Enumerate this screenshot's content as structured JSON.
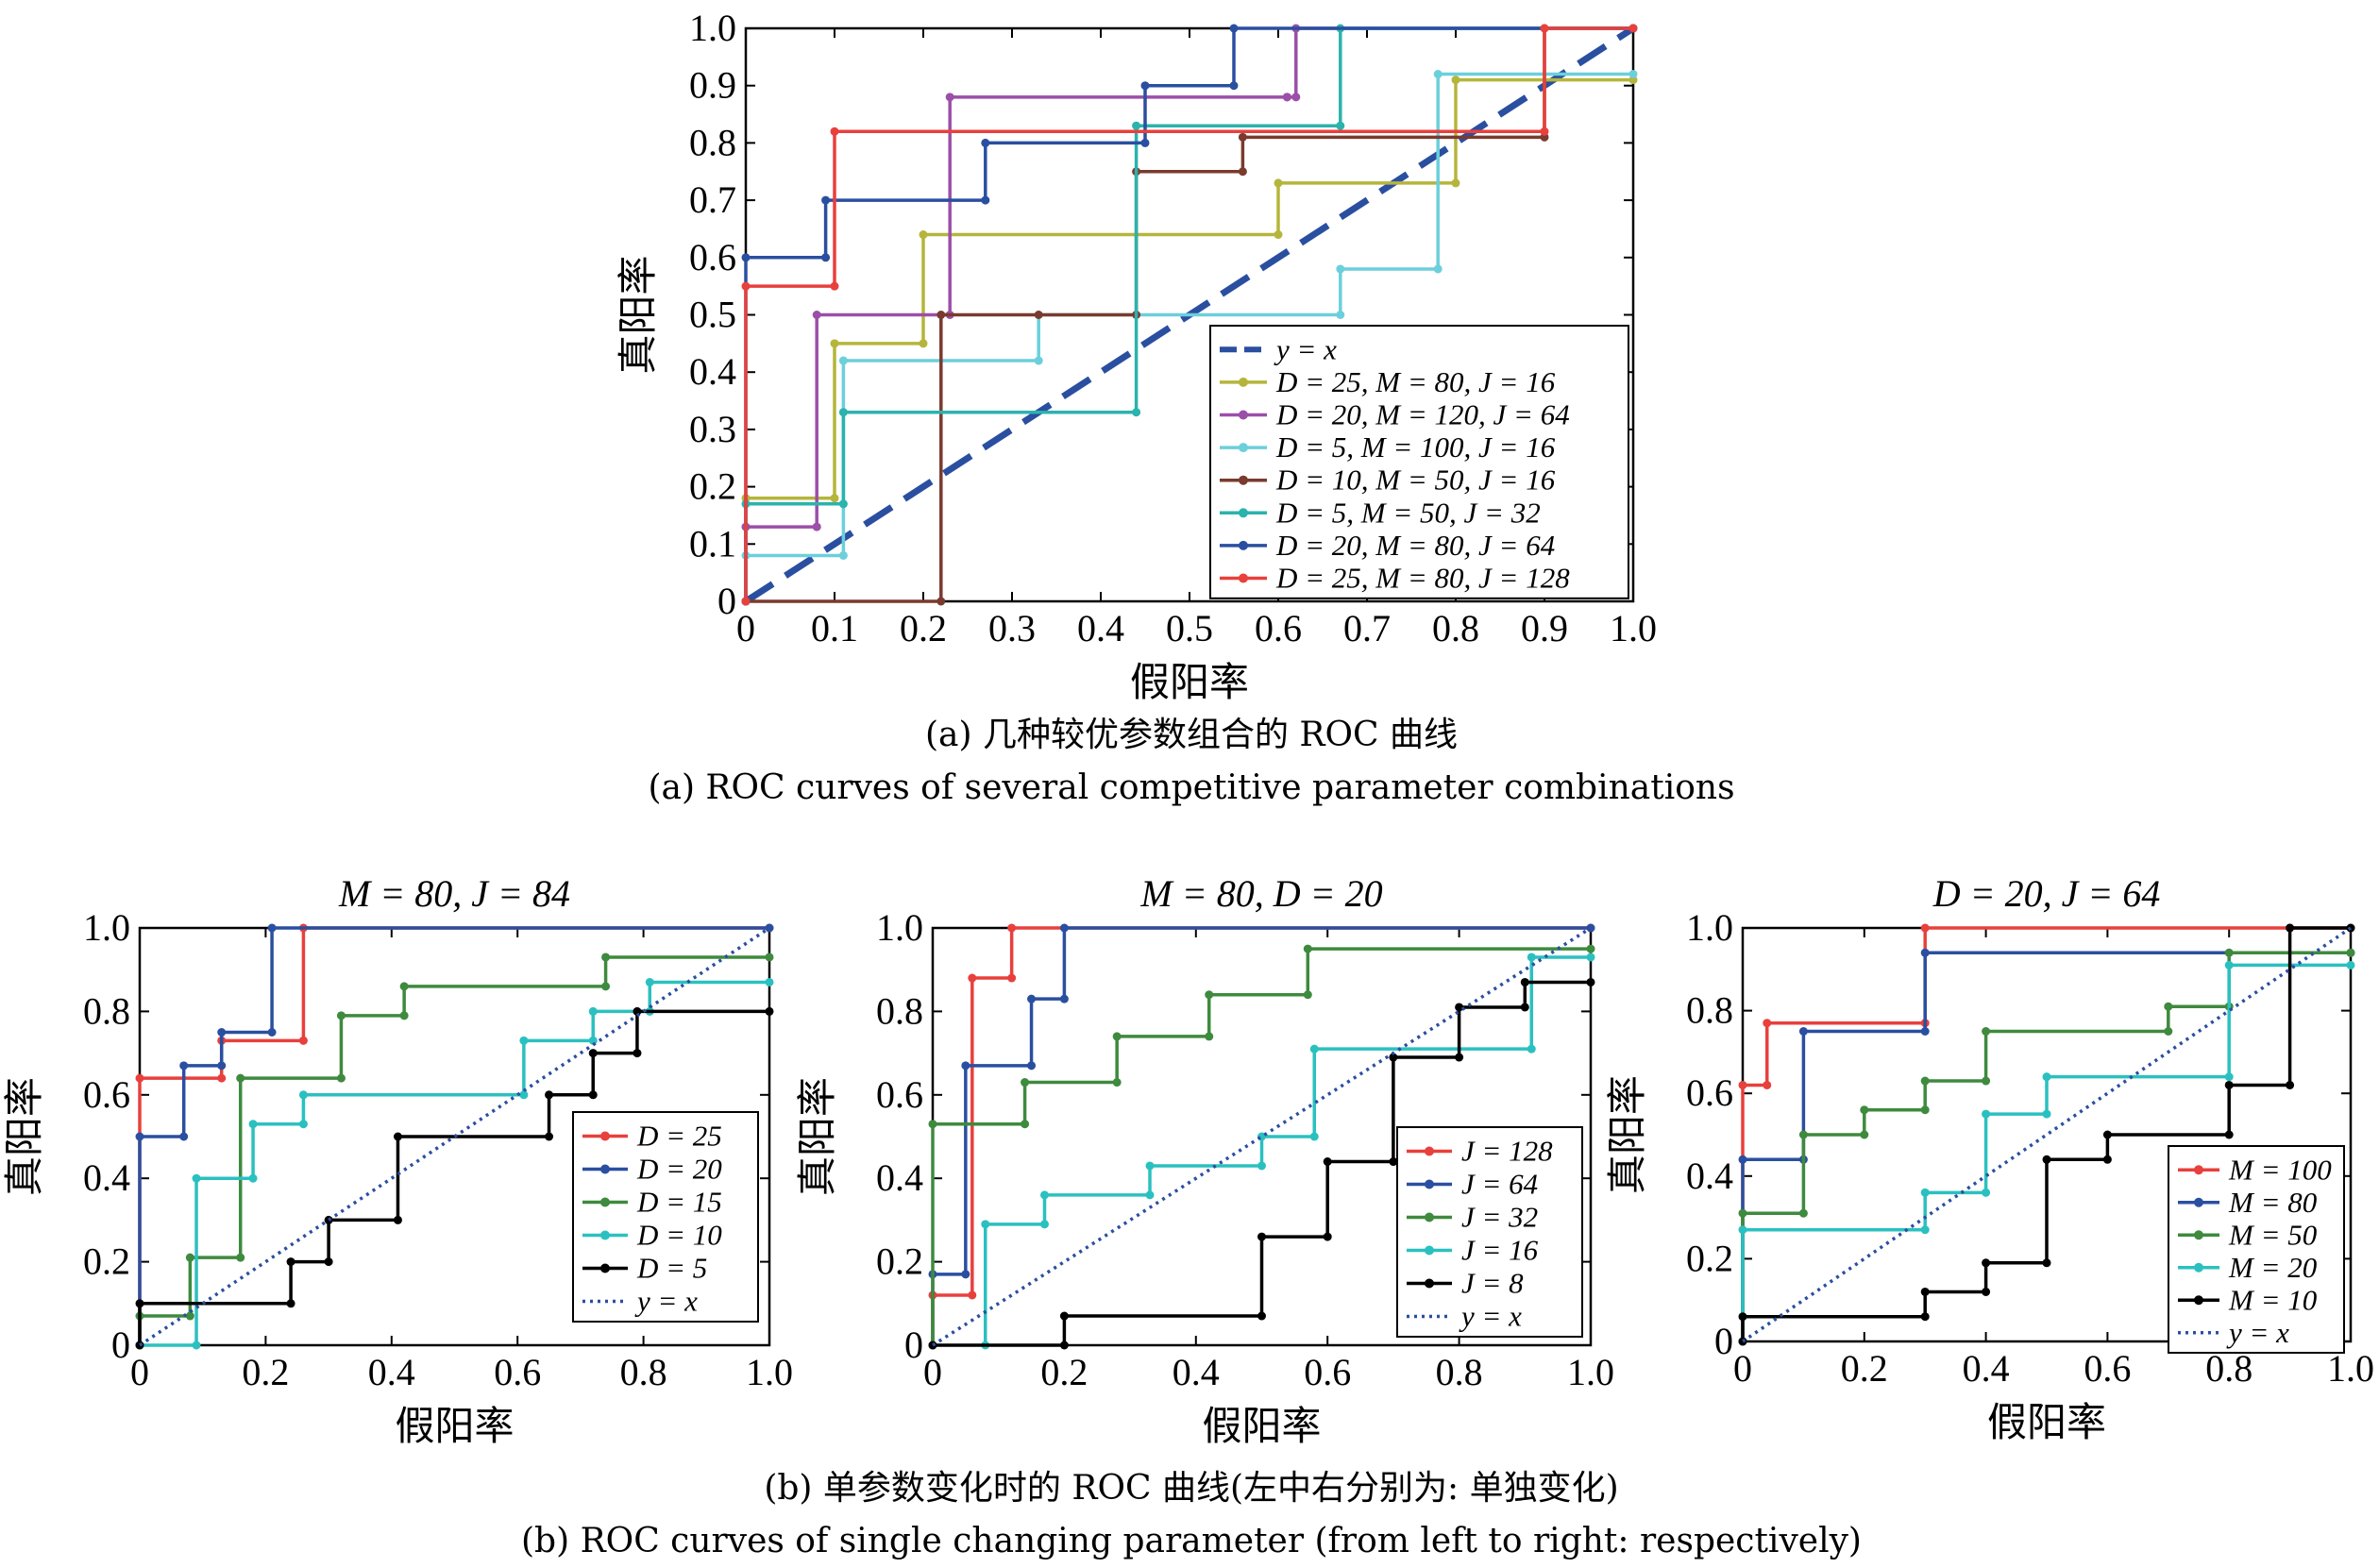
{
  "captions": {
    "a_cn": "(a) 几种较优参数组合的 ROC 曲线",
    "a_en": "(a) ROC curves of several competitive parameter combinations",
    "b_cn": "(b) 单参数变化时的 ROC 曲线(左中右分别为: 单独变化)",
    "b_en": "(b) ROC curves of single changing parameter (from left to right: respectively)"
  },
  "chart_data": [
    {
      "id": "a",
      "type": "line",
      "title": "",
      "xlabel": "假阳率",
      "ylabel": "真阳率",
      "xlim": [
        0,
        1
      ],
      "ylim": [
        0,
        1
      ],
      "xticks": [
        "0",
        "0.1",
        "0.2",
        "0.3",
        "0.4",
        "0.5",
        "0.6",
        "0.7",
        "0.8",
        "0.9",
        "1.0"
      ],
      "yticks": [
        "0",
        "0.1",
        "0.2",
        "0.3",
        "0.4",
        "0.5",
        "0.6",
        "0.7",
        "0.8",
        "0.9",
        "1.0"
      ],
      "legend_position": "bottom-right",
      "series": [
        {
          "name": "y = x",
          "color": "#2a4fa0",
          "style": "dashed",
          "x": [
            0,
            1
          ],
          "y": [
            0,
            1
          ]
        },
        {
          "name": "D = 25, M = 80, J = 16",
          "color": "#b5b53c",
          "style": "solid",
          "x": [
            0,
            0,
            0.1,
            0.1,
            0.2,
            0.2,
            0.6,
            0.6,
            0.8,
            0.8,
            1.0
          ],
          "y": [
            0,
            0.18,
            0.18,
            0.45,
            0.45,
            0.64,
            0.64,
            0.73,
            0.73,
            0.91,
            0.91
          ]
        },
        {
          "name": "D = 20, M = 120, J = 64",
          "color": "#9b4fa8",
          "style": "solid",
          "x": [
            0,
            0,
            0.08,
            0.08,
            0.23,
            0.23,
            0.61,
            0.61,
            0.62,
            0.62,
            1.0
          ],
          "y": [
            0,
            0.13,
            0.13,
            0.5,
            0.5,
            0.88,
            0.88,
            0.88,
            0.88,
            1.0,
            1.0
          ]
        },
        {
          "name": "D = 5, M = 100, J = 16",
          "color": "#6ccfdc",
          "style": "solid",
          "x": [
            0,
            0,
            0.11,
            0.11,
            0.33,
            0.33,
            0.67,
            0.67,
            0.78,
            0.78,
            1.0
          ],
          "y": [
            0,
            0.08,
            0.08,
            0.42,
            0.42,
            0.5,
            0.5,
            0.58,
            0.58,
            0.92,
            0.92
          ]
        },
        {
          "name": "D = 10, M = 50, J = 16",
          "color": "#7a3a2e",
          "style": "solid",
          "x": [
            0,
            0,
            0.22,
            0.22,
            0.33,
            0.44,
            0.44,
            0.56,
            0.56,
            0.9,
            0.9
          ],
          "y": [
            0,
            0,
            0,
            0.5,
            0.5,
            0.5,
            0.75,
            0.75,
            0.81,
            0.81,
            1.0
          ]
        },
        {
          "name": "D = 5, M = 50, J = 32",
          "color": "#2bb3ad",
          "style": "solid",
          "x": [
            0,
            0,
            0.11,
            0.11,
            0.44,
            0.44,
            0.67,
            0.67,
            1.0
          ],
          "y": [
            0,
            0.17,
            0.17,
            0.33,
            0.33,
            0.83,
            0.83,
            1.0,
            1.0
          ]
        },
        {
          "name": "D = 20, M = 80, J = 64",
          "color": "#2a4fa0",
          "style": "solid",
          "x": [
            0,
            0,
            0.09,
            0.09,
            0.27,
            0.27,
            0.45,
            0.45,
            0.55,
            0.55,
            1.0
          ],
          "y": [
            0,
            0.6,
            0.6,
            0.7,
            0.7,
            0.8,
            0.8,
            0.9,
            0.9,
            1.0,
            1.0
          ]
        },
        {
          "name": "D = 25, M = 80, J = 128",
          "color": "#e8403c",
          "style": "solid",
          "x": [
            0,
            0,
            0.1,
            0.1,
            0.9,
            0.9,
            1.0
          ],
          "y": [
            0,
            0.55,
            0.55,
            0.82,
            0.82,
            1.0,
            1.0
          ]
        }
      ]
    },
    {
      "id": "b1",
      "type": "line",
      "title": "M = 80, J = 84",
      "xlabel": "假阳率",
      "ylabel": "真阳率",
      "xlim": [
        0,
        1
      ],
      "ylim": [
        0,
        1
      ],
      "xticks": [
        "0",
        "0.2",
        "0.4",
        "0.6",
        "0.8",
        "1.0"
      ],
      "yticks": [
        "0",
        "0.2",
        "0.4",
        "0.6",
        "0.8",
        "1.0"
      ],
      "legend_position": "bottom-right",
      "series": [
        {
          "name": "D = 25",
          "color": "#e8403c",
          "style": "solid",
          "x": [
            0,
            0,
            0.13,
            0.13,
            0.26,
            0.26,
            1.0
          ],
          "y": [
            0,
            0.64,
            0.64,
            0.73,
            0.73,
            1.0,
            1.0
          ]
        },
        {
          "name": "D = 20",
          "color": "#2a4fa0",
          "style": "solid",
          "x": [
            0,
            0,
            0.07,
            0.07,
            0.13,
            0.13,
            0.21,
            0.21,
            1.0
          ],
          "y": [
            0,
            0.5,
            0.5,
            0.67,
            0.67,
            0.75,
            0.75,
            1.0,
            1.0
          ]
        },
        {
          "name": "D = 15",
          "color": "#3e8a3e",
          "style": "solid",
          "x": [
            0,
            0,
            0.08,
            0.08,
            0.16,
            0.16,
            0.32,
            0.32,
            0.42,
            0.42,
            0.74,
            0.74,
            1.0
          ],
          "y": [
            0,
            0.07,
            0.07,
            0.21,
            0.21,
            0.64,
            0.64,
            0.79,
            0.79,
            0.86,
            0.86,
            0.93,
            0.93
          ]
        },
        {
          "name": "D = 10",
          "color": "#2bc0c0",
          "style": "solid",
          "x": [
            0,
            0.09,
            0.09,
            0.18,
            0.18,
            0.26,
            0.26,
            0.61,
            0.61,
            0.72,
            0.72,
            0.81,
            0.81,
            1.0
          ],
          "y": [
            0,
            0,
            0.4,
            0.4,
            0.53,
            0.53,
            0.6,
            0.6,
            0.73,
            0.73,
            0.8,
            0.8,
            0.87,
            0.87
          ]
        },
        {
          "name": "D = 5",
          "color": "#000000",
          "style": "solid",
          "x": [
            0,
            0,
            0.24,
            0.24,
            0.3,
            0.3,
            0.41,
            0.41,
            0.65,
            0.65,
            0.72,
            0.72,
            0.79,
            0.79,
            1.0
          ],
          "y": [
            0,
            0.1,
            0.1,
            0.2,
            0.2,
            0.3,
            0.3,
            0.5,
            0.5,
            0.6,
            0.6,
            0.7,
            0.7,
            0.8,
            0.8
          ]
        },
        {
          "name": "y = x",
          "color": "#2a4fa0",
          "style": "dotted",
          "x": [
            0,
            1
          ],
          "y": [
            0,
            1
          ]
        }
      ]
    },
    {
      "id": "b2",
      "type": "line",
      "title": "M = 80, D = 20",
      "xlabel": "假阳率",
      "ylabel": "真阳率",
      "xlim": [
        0,
        1
      ],
      "ylim": [
        0,
        1
      ],
      "xticks": [
        "0",
        "0.2",
        "0.4",
        "0.6",
        "0.8",
        "1.0"
      ],
      "yticks": [
        "0",
        "0.2",
        "0.4",
        "0.6",
        "0.8",
        "1.0"
      ],
      "legend_position": "bottom-right",
      "series": [
        {
          "name": "J = 128",
          "color": "#e8403c",
          "style": "solid",
          "x": [
            0,
            0,
            0.06,
            0.06,
            0.12,
            0.12,
            1.0
          ],
          "y": [
            0,
            0.12,
            0.12,
            0.88,
            0.88,
            1.0,
            1.0
          ]
        },
        {
          "name": "J = 64",
          "color": "#2a4fa0",
          "style": "solid",
          "x": [
            0,
            0,
            0.05,
            0.05,
            0.15,
            0.15,
            0.2,
            0.2,
            1.0
          ],
          "y": [
            0,
            0.17,
            0.17,
            0.67,
            0.67,
            0.83,
            0.83,
            1.0,
            1.0
          ]
        },
        {
          "name": "J = 32",
          "color": "#3e8a3e",
          "style": "solid",
          "x": [
            0,
            0,
            0.14,
            0.14,
            0.28,
            0.28,
            0.42,
            0.42,
            0.57,
            0.57,
            1.0
          ],
          "y": [
            0,
            0.53,
            0.53,
            0.63,
            0.63,
            0.74,
            0.74,
            0.84,
            0.84,
            0.95,
            0.95
          ]
        },
        {
          "name": "J = 16",
          "color": "#2bc0c0",
          "style": "solid",
          "x": [
            0.08,
            0.08,
            0.17,
            0.17,
            0.33,
            0.33,
            0.5,
            0.5,
            0.58,
            0.58,
            0.91,
            0.91,
            1.0
          ],
          "y": [
            0,
            0.29,
            0.29,
            0.36,
            0.36,
            0.43,
            0.43,
            0.5,
            0.5,
            0.71,
            0.71,
            0.93,
            0.93
          ]
        },
        {
          "name": "J = 8",
          "color": "#000000",
          "style": "solid",
          "x": [
            0,
            0.2,
            0.2,
            0.5,
            0.5,
            0.6,
            0.6,
            0.7,
            0.7,
            0.8,
            0.8,
            0.9,
            0.9,
            1.0
          ],
          "y": [
            0,
            0,
            0.07,
            0.07,
            0.26,
            0.26,
            0.44,
            0.44,
            0.69,
            0.69,
            0.81,
            0.81,
            0.87,
            0.87
          ]
        },
        {
          "name": "y = x",
          "color": "#2a4fa0",
          "style": "dotted",
          "x": [
            0,
            1
          ],
          "y": [
            0,
            1
          ]
        }
      ]
    },
    {
      "id": "b3",
      "type": "line",
      "title": "D = 20, J = 64",
      "xlabel": "假阳率",
      "ylabel": "真阳率",
      "xlim": [
        0,
        1
      ],
      "ylim": [
        0,
        1
      ],
      "xticks": [
        "0",
        "0.2",
        "0.4",
        "0.6",
        "0.8",
        "1.0"
      ],
      "yticks": [
        "0",
        "0.2",
        "0.4",
        "0.6",
        "0.8",
        "1.0"
      ],
      "legend_position": "bottom-right",
      "series": [
        {
          "name": "M = 100",
          "color": "#e8403c",
          "style": "solid",
          "x": [
            0,
            0,
            0.04,
            0.04,
            0.3,
            0.3,
            0.9,
            0.9,
            1.0
          ],
          "y": [
            0,
            0.62,
            0.62,
            0.77,
            0.77,
            1.0,
            1.0,
            1.0,
            1.0
          ]
        },
        {
          "name": "M = 80",
          "color": "#2a4fa0",
          "style": "solid",
          "x": [
            0,
            0,
            0.1,
            0.1,
            0.3,
            0.3,
            1.0
          ],
          "y": [
            0,
            0.44,
            0.44,
            0.75,
            0.75,
            0.94,
            0.94
          ]
        },
        {
          "name": "M = 50",
          "color": "#3e8a3e",
          "style": "solid",
          "x": [
            0,
            0,
            0.1,
            0.1,
            0.2,
            0.2,
            0.3,
            0.3,
            0.4,
            0.4,
            0.7,
            0.7,
            0.8,
            0.8,
            1.0
          ],
          "y": [
            0,
            0.31,
            0.31,
            0.5,
            0.5,
            0.56,
            0.56,
            0.63,
            0.63,
            0.75,
            0.75,
            0.81,
            0.81,
            0.94,
            0.94
          ]
        },
        {
          "name": "M = 20",
          "color": "#2bc0c0",
          "style": "solid",
          "x": [
            0,
            0,
            0.3,
            0.3,
            0.4,
            0.4,
            0.5,
            0.5,
            0.8,
            0.8,
            1.0
          ],
          "y": [
            0,
            0.27,
            0.27,
            0.36,
            0.36,
            0.55,
            0.55,
            0.64,
            0.64,
            0.91,
            0.91
          ]
        },
        {
          "name": "M = 10",
          "color": "#000000",
          "style": "solid",
          "x": [
            0,
            0,
            0.3,
            0.3,
            0.4,
            0.4,
            0.5,
            0.5,
            0.6,
            0.6,
            0.8,
            0.8,
            0.9,
            0.9,
            1.0
          ],
          "y": [
            0,
            0.06,
            0.06,
            0.12,
            0.12,
            0.19,
            0.19,
            0.44,
            0.44,
            0.5,
            0.5,
            0.62,
            0.62,
            1.0,
            1.0
          ]
        },
        {
          "name": "y = x",
          "color": "#2a4fa0",
          "style": "dotted",
          "x": [
            0,
            1
          ],
          "y": [
            0,
            1
          ]
        }
      ]
    }
  ]
}
